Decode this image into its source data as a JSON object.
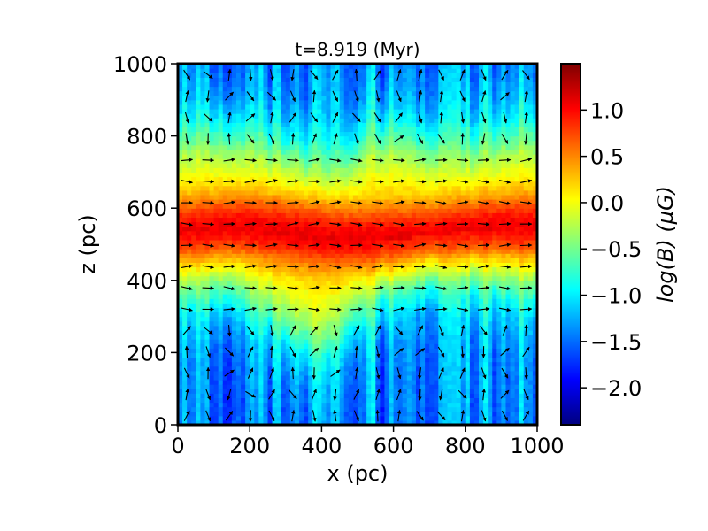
{
  "chart_data": {
    "type": "heatmap",
    "title": "t=8.919 (Myr)",
    "xlabel": "x (pc)",
    "ylabel": "z (pc)",
    "xlim": [
      0,
      1000
    ],
    "ylim": [
      0,
      1000
    ],
    "xticks": [
      0,
      200,
      400,
      600,
      800,
      1000
    ],
    "yticks": [
      0,
      200,
      400,
      600,
      800,
      1000
    ],
    "xtick_labels": [
      "0",
      "200",
      "400",
      "600",
      "800",
      "1000"
    ],
    "ytick_labels": [
      "0",
      "200",
      "400",
      "600",
      "800",
      "1000"
    ],
    "colorbar": {
      "label": "log(B) (μG)",
      "range": [
        -2.4,
        1.5
      ],
      "ticks": [
        1.0,
        0.5,
        0.0,
        -0.5,
        -1.0,
        -1.5,
        -2.0
      ],
      "tick_labels": [
        "1.0",
        "0.5",
        "0.0",
        "−0.5",
        "−1.0",
        "−1.5",
        "−2.0"
      ],
      "colormap": "jet",
      "colors": [
        "#00007f",
        "#0000ff",
        "#0080ff",
        "#00ffff",
        "#80ff80",
        "#ffff00",
        "#ff8000",
        "#ff0000",
        "#7f0000"
      ]
    },
    "field_model": {
      "description": "magnetic field strength peaks in a disk near the midplane",
      "midplane_z": 530,
      "peak_logB": 1.05,
      "background_logB": -1.4
    },
    "grid": false,
    "vectors": true
  }
}
